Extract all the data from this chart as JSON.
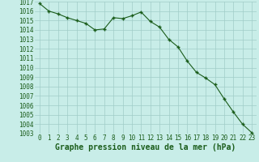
{
  "x": [
    0,
    1,
    2,
    3,
    4,
    5,
    6,
    7,
    8,
    9,
    10,
    11,
    12,
    13,
    14,
    15,
    16,
    17,
    18,
    19,
    20,
    21,
    22,
    23
  ],
  "y": [
    1016.8,
    1016.0,
    1015.7,
    1015.3,
    1015.0,
    1014.7,
    1014.0,
    1014.1,
    1015.3,
    1015.2,
    1015.5,
    1015.9,
    1014.9,
    1014.3,
    1013.0,
    1012.2,
    1010.7,
    1009.5,
    1008.9,
    1008.2,
    1006.7,
    1005.3,
    1004.0,
    1003.1
  ],
  "line_color": "#1a5c1a",
  "marker": "+",
  "bg_color": "#c8ede8",
  "grid_color": "#a0ccc8",
  "xlabel": "Graphe pression niveau de la mer (hPa)",
  "xlabel_fontsize": 7,
  "xlabel_color": "#1a5c1a",
  "tick_color": "#1a5c1a",
  "tick_fontsize": 5.5,
  "ylim": [
    1003,
    1017
  ],
  "xlim_min": -0.5,
  "xlim_max": 23.5,
  "ytick_step": 1,
  "xticks": [
    0,
    1,
    2,
    3,
    4,
    5,
    6,
    7,
    8,
    9,
    10,
    11,
    12,
    13,
    14,
    15,
    16,
    17,
    18,
    19,
    20,
    21,
    22,
    23
  ]
}
